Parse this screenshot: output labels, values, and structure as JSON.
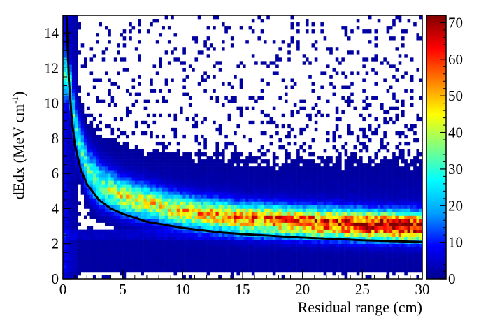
{
  "chart_data": {
    "type": "heatmap",
    "xlabel": "Residual range (cm)",
    "ylabel_main": "dEdx (MeV cm",
    "ylabel_sup": "-1",
    "ylabel_close": ")",
    "xlim": [
      0,
      30
    ],
    "ylim": [
      0,
      15
    ],
    "x_ticks": [
      0,
      5,
      10,
      15,
      20,
      25,
      30
    ],
    "y_ticks": [
      0,
      2,
      4,
      6,
      8,
      10,
      12,
      14
    ],
    "color_scale": {
      "min": 0,
      "max": 72,
      "ticks": [
        0,
        10,
        20,
        30,
        40,
        50,
        60,
        70
      ],
      "palette": "rainbow",
      "stops": [
        "#00008f",
        "#0000ff",
        "#00a0ff",
        "#00ffff",
        "#80ff80",
        "#ffff00",
        "#ff8000",
        "#ff0000",
        "#800000"
      ]
    },
    "bins": {
      "nx": 120,
      "ny": 75
    },
    "band": {
      "description_points": [
        {
          "x": 0.5,
          "y": 11.5
        },
        {
          "x": 1,
          "y": 8.5
        },
        {
          "x": 2,
          "y": 6.2
        },
        {
          "x": 3,
          "y": 5.3
        },
        {
          "x": 5,
          "y": 4.6
        },
        {
          "x": 10,
          "y": 3.8
        },
        {
          "x": 15,
          "y": 3.4
        },
        {
          "x": 20,
          "y": 3.2
        },
        {
          "x": 25,
          "y": 3.05
        },
        {
          "x": 30,
          "y": 2.95
        }
      ],
      "peak_counts_at_x": [
        {
          "x": 1,
          "c": 22
        },
        {
          "x": 5,
          "c": 38
        },
        {
          "x": 10,
          "c": 44
        },
        {
          "x": 15,
          "c": 50
        },
        {
          "x": 20,
          "c": 56
        },
        {
          "x": 25,
          "c": 62
        },
        {
          "x": 30,
          "c": 66
        }
      ]
    },
    "fit_curve": {
      "name": "",
      "color": "#000000",
      "points": [
        {
          "x": 0.3,
          "y": 15
        },
        {
          "x": 0.5,
          "y": 11.3
        },
        {
          "x": 0.75,
          "y": 9.0
        },
        {
          "x": 1,
          "y": 7.6
        },
        {
          "x": 1.5,
          "y": 6.2
        },
        {
          "x": 2,
          "y": 5.4
        },
        {
          "x": 3,
          "y": 4.5
        },
        {
          "x": 4,
          "y": 4.0
        },
        {
          "x": 5,
          "y": 3.7
        },
        {
          "x": 7,
          "y": 3.25
        },
        {
          "x": 10,
          "y": 2.9
        },
        {
          "x": 13,
          "y": 2.65
        },
        {
          "x": 15,
          "y": 2.55
        },
        {
          "x": 20,
          "y": 2.35
        },
        {
          "x": 25,
          "y": 2.2
        },
        {
          "x": 30,
          "y": 2.1
        }
      ]
    }
  }
}
